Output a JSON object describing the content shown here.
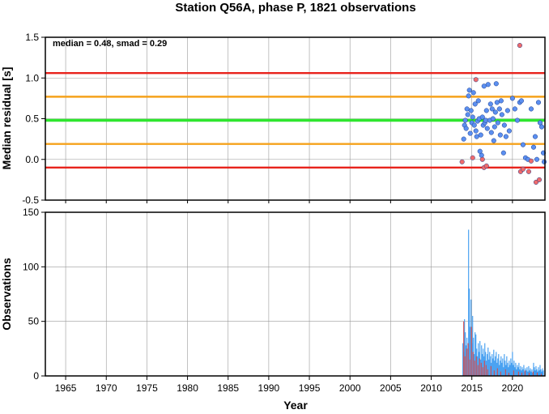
{
  "chart_data": [
    {
      "type": "scatter",
      "title": "Station Q56A, phase P, 1821 observations",
      "xlabel": "",
      "ylabel": "Median residual [s]",
      "xlim": [
        1962.5,
        2024.0
      ],
      "ylim": [
        -0.5,
        1.5
      ],
      "yticks": [
        "-0.5",
        "0.0",
        "0.5",
        "1.0",
        "1.5"
      ],
      "grid": true,
      "annotation": "median = 0.48, smad = 0.29",
      "reference_lines": [
        {
          "y": 1.06,
          "color": "#e8231c"
        },
        {
          "y": 0.77,
          "color": "#f5a21b"
        },
        {
          "y": 0.48,
          "color": "#2ee62e"
        },
        {
          "y": 0.19,
          "color": "#f5a21b"
        },
        {
          "y": -0.1,
          "color": "#e8231c"
        }
      ],
      "series": [
        {
          "color": "#5b8ff0",
          "points": [
            [
              2014.0,
              0.25
            ],
            [
              2014.1,
              0.42
            ],
            [
              2014.2,
              0.48
            ],
            [
              2014.3,
              0.38
            ],
            [
              2014.4,
              0.62
            ],
            [
              2014.5,
              0.55
            ],
            [
              2014.6,
              0.78
            ],
            [
              2014.7,
              0.85
            ],
            [
              2014.8,
              0.32
            ],
            [
              2014.9,
              0.6
            ],
            [
              2015.0,
              0.45
            ],
            [
              2015.1,
              0.52
            ],
            [
              2015.2,
              0.82
            ],
            [
              2015.3,
              0.42
            ],
            [
              2015.4,
              0.68
            ],
            [
              2015.5,
              0.35
            ],
            [
              2015.6,
              0.28
            ],
            [
              2015.7,
              0.47
            ],
            [
              2015.8,
              0.72
            ],
            [
              2015.9,
              0.5
            ],
            [
              2016.0,
              0.1
            ],
            [
              2016.1,
              0.3
            ],
            [
              2016.2,
              0.05
            ],
            [
              2016.3,
              0.52
            ],
            [
              2016.4,
              0.42
            ],
            [
              2016.5,
              0.9
            ],
            [
              2016.6,
              0.45
            ],
            [
              2016.7,
              0.48
            ],
            [
              2016.8,
              0.6
            ],
            [
              2016.9,
              0.38
            ],
            [
              2017.0,
              0.92
            ],
            [
              2017.2,
              0.48
            ],
            [
              2017.3,
              0.68
            ],
            [
              2017.4,
              0.33
            ],
            [
              2017.5,
              0.62
            ],
            [
              2017.6,
              0.5
            ],
            [
              2017.7,
              0.23
            ],
            [
              2017.8,
              0.4
            ],
            [
              2017.9,
              0.58
            ],
            [
              2018.0,
              0.93
            ],
            [
              2018.1,
              0.7
            ],
            [
              2018.2,
              0.45
            ],
            [
              2018.4,
              0.62
            ],
            [
              2018.5,
              0.3
            ],
            [
              2018.6,
              0.72
            ],
            [
              2018.7,
              0.55
            ],
            [
              2018.9,
              0.08
            ],
            [
              2019.0,
              0.42
            ],
            [
              2019.2,
              0.28
            ],
            [
              2019.4,
              0.6
            ],
            [
              2019.6,
              0.35
            ],
            [
              2020.0,
              0.75
            ],
            [
              2020.3,
              0.62
            ],
            [
              2020.6,
              0.48
            ],
            [
              2020.9,
              0.7
            ],
            [
              2021.1,
              0.72
            ],
            [
              2021.3,
              0.18
            ],
            [
              2021.6,
              0.02
            ],
            [
              2021.9,
              0.0
            ],
            [
              2022.3,
              0.62
            ],
            [
              2022.6,
              0.15
            ],
            [
              2022.8,
              0.28
            ],
            [
              2023.0,
              0.0
            ],
            [
              2023.2,
              0.7
            ],
            [
              2023.4,
              0.45
            ],
            [
              2023.6,
              0.4
            ],
            [
              2023.8,
              0.08
            ],
            [
              2023.9,
              -0.03
            ]
          ]
        },
        {
          "color": "#f06b6b",
          "points": [
            [
              2013.8,
              -0.03
            ],
            [
              2015.1,
              0.02
            ],
            [
              2015.5,
              0.98
            ],
            [
              2016.3,
              0.0
            ],
            [
              2016.5,
              -0.1
            ],
            [
              2016.8,
              -0.08
            ],
            [
              2020.9,
              1.4
            ],
            [
              2021.0,
              -0.15
            ],
            [
              2021.3,
              -0.12
            ],
            [
              2022.0,
              -0.15
            ],
            [
              2022.3,
              -0.02
            ],
            [
              2022.9,
              -0.28
            ],
            [
              2023.3,
              -0.25
            ]
          ]
        }
      ]
    },
    {
      "type": "bar",
      "title": "",
      "xlabel": "Year",
      "ylabel": "Observations",
      "xlim": [
        1962.5,
        2024.0
      ],
      "ylim": [
        0,
        150
      ],
      "xticks": [
        "1965",
        "1970",
        "1975",
        "1980",
        "1985",
        "1990",
        "1995",
        "2000",
        "2005",
        "2010",
        "2015",
        "2020"
      ],
      "yticks": [
        "0",
        "50",
        "100",
        "150"
      ],
      "grid": true,
      "series": [
        {
          "color": "#3d9bf0",
          "points": [
            [
              2013.9,
              30
            ],
            [
              2014.0,
              22
            ],
            [
              2014.1,
              52
            ],
            [
              2014.2,
              40
            ],
            [
              2014.3,
              28
            ],
            [
              2014.4,
              35
            ],
            [
              2014.5,
              25
            ],
            [
              2014.6,
              134
            ],
            [
              2014.7,
              80
            ],
            [
              2014.8,
              45
            ],
            [
              2014.9,
              70
            ],
            [
              2015.0,
              30
            ],
            [
              2015.1,
              55
            ],
            [
              2015.2,
              35
            ],
            [
              2015.3,
              20
            ],
            [
              2015.4,
              40
            ],
            [
              2015.5,
              38
            ],
            [
              2015.6,
              25
            ],
            [
              2015.7,
              18
            ],
            [
              2015.8,
              30
            ],
            [
              2015.9,
              22
            ],
            [
              2016.0,
              32
            ],
            [
              2016.1,
              15
            ],
            [
              2016.2,
              28
            ],
            [
              2016.3,
              20
            ],
            [
              2016.4,
              25
            ],
            [
              2016.5,
              18
            ],
            [
              2016.6,
              30
            ],
            [
              2016.7,
              22
            ],
            [
              2016.8,
              14
            ],
            [
              2016.9,
              20
            ],
            [
              2017.0,
              26
            ],
            [
              2017.1,
              15
            ],
            [
              2017.2,
              22
            ],
            [
              2017.3,
              18
            ],
            [
              2017.4,
              12
            ],
            [
              2017.5,
              20
            ],
            [
              2017.6,
              16
            ],
            [
              2017.7,
              24
            ],
            [
              2017.8,
              14
            ],
            [
              2017.9,
              18
            ],
            [
              2018.0,
              22
            ],
            [
              2018.1,
              12
            ],
            [
              2018.2,
              16
            ],
            [
              2018.3,
              20
            ],
            [
              2018.4,
              10
            ],
            [
              2018.5,
              14
            ],
            [
              2018.6,
              18
            ],
            [
              2018.7,
              12
            ],
            [
              2018.8,
              16
            ],
            [
              2018.9,
              8
            ],
            [
              2019.0,
              20
            ],
            [
              2019.1,
              14
            ],
            [
              2019.2,
              10
            ],
            [
              2019.3,
              18
            ],
            [
              2019.4,
              12
            ],
            [
              2019.5,
              8
            ],
            [
              2019.6,
              14
            ],
            [
              2019.7,
              10
            ],
            [
              2019.8,
              16
            ],
            [
              2019.9,
              12
            ],
            [
              2020.0,
              22
            ],
            [
              2020.1,
              10
            ],
            [
              2020.2,
              14
            ],
            [
              2020.3,
              8
            ],
            [
              2020.4,
              12
            ],
            [
              2020.5,
              6
            ],
            [
              2020.6,
              10
            ],
            [
              2020.7,
              8
            ],
            [
              2020.8,
              12
            ],
            [
              2020.9,
              6
            ],
            [
              2021.0,
              9
            ],
            [
              2021.1,
              5
            ],
            [
              2021.2,
              8
            ],
            [
              2021.3,
              6
            ],
            [
              2021.4,
              10
            ],
            [
              2021.5,
              4
            ],
            [
              2021.6,
              7
            ],
            [
              2021.7,
              5
            ],
            [
              2021.8,
              8
            ],
            [
              2021.9,
              4
            ],
            [
              2022.0,
              9
            ],
            [
              2022.1,
              5
            ],
            [
              2022.2,
              7
            ],
            [
              2022.3,
              4
            ],
            [
              2022.4,
              6
            ],
            [
              2022.5,
              3
            ],
            [
              2022.6,
              12
            ],
            [
              2022.7,
              8
            ],
            [
              2022.8,
              5
            ],
            [
              2022.9,
              9
            ],
            [
              2023.0,
              6
            ],
            [
              2023.1,
              4
            ],
            [
              2023.2,
              8
            ],
            [
              2023.3,
              5
            ],
            [
              2023.4,
              10
            ],
            [
              2023.5,
              6
            ],
            [
              2023.6,
              4
            ],
            [
              2023.7,
              7
            ],
            [
              2023.8,
              5
            ]
          ]
        },
        {
          "color": "#d84a4a",
          "points": [
            [
              2014.0,
              50
            ],
            [
              2014.15,
              18
            ],
            [
              2014.35,
              25
            ],
            [
              2014.55,
              30
            ],
            [
              2014.75,
              15
            ],
            [
              2014.95,
              45
            ],
            [
              2015.15,
              22
            ],
            [
              2015.35,
              14
            ],
            [
              2015.55,
              18
            ],
            [
              2015.75,
              10
            ],
            [
              2015.95,
              16
            ],
            [
              2016.15,
              12
            ],
            [
              2016.35,
              8
            ],
            [
              2016.55,
              14
            ],
            [
              2016.75,
              10
            ],
            [
              2016.95,
              6
            ],
            [
              2017.35,
              9
            ],
            [
              2017.75,
              5
            ],
            [
              2018.15,
              7
            ],
            [
              2018.55,
              4
            ],
            [
              2019.15,
              6
            ],
            [
              2019.55,
              3
            ],
            [
              2020.15,
              5
            ],
            [
              2020.75,
              4
            ],
            [
              2021.15,
              3
            ],
            [
              2021.55,
              5
            ],
            [
              2022.05,
              3
            ],
            [
              2022.55,
              4
            ],
            [
              2023.05,
              3
            ],
            [
              2023.55,
              2
            ]
          ]
        }
      ]
    }
  ]
}
